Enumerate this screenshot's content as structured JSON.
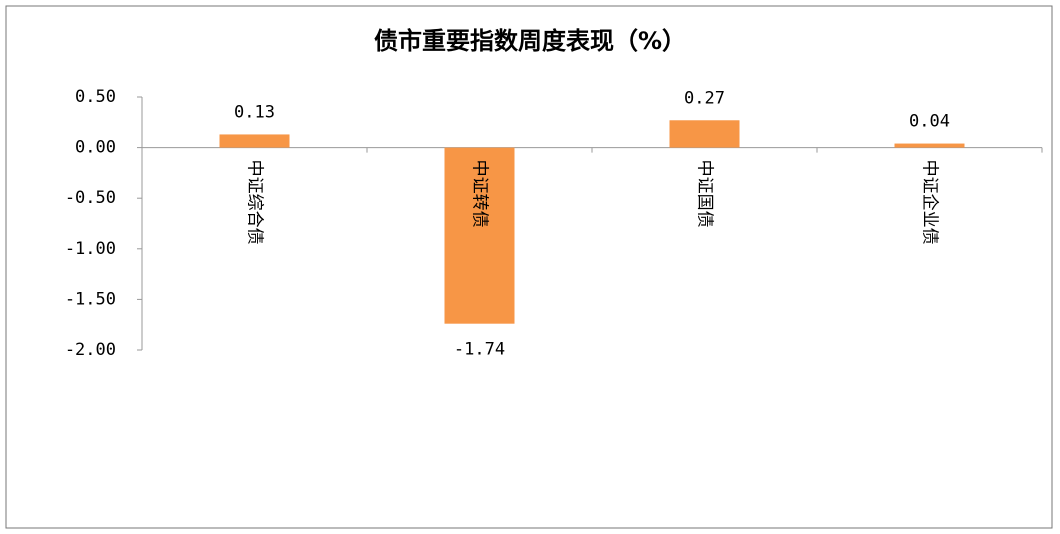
{
  "chart_data": {
    "type": "bar",
    "title": "债市重要指数周度表现（%）",
    "categories": [
      "中证综合债",
      "中证转债",
      "中证国债",
      "中证企业债"
    ],
    "values": [
      0.13,
      -1.74,
      0.27,
      0.04
    ],
    "color": "#f79646",
    "ylim": [
      -2,
      0.5
    ],
    "yticks": [
      {
        "value": 0.5,
        "label": "0.50"
      },
      {
        "value": 0,
        "label": "0.00"
      },
      {
        "value": -0.5,
        "label": "-0.50"
      },
      {
        "value": -1,
        "label": "-1.00"
      },
      {
        "value": -1.5,
        "label": "-1.50"
      },
      {
        "value": -2,
        "label": "-2.00"
      }
    ],
    "grid": false
  }
}
